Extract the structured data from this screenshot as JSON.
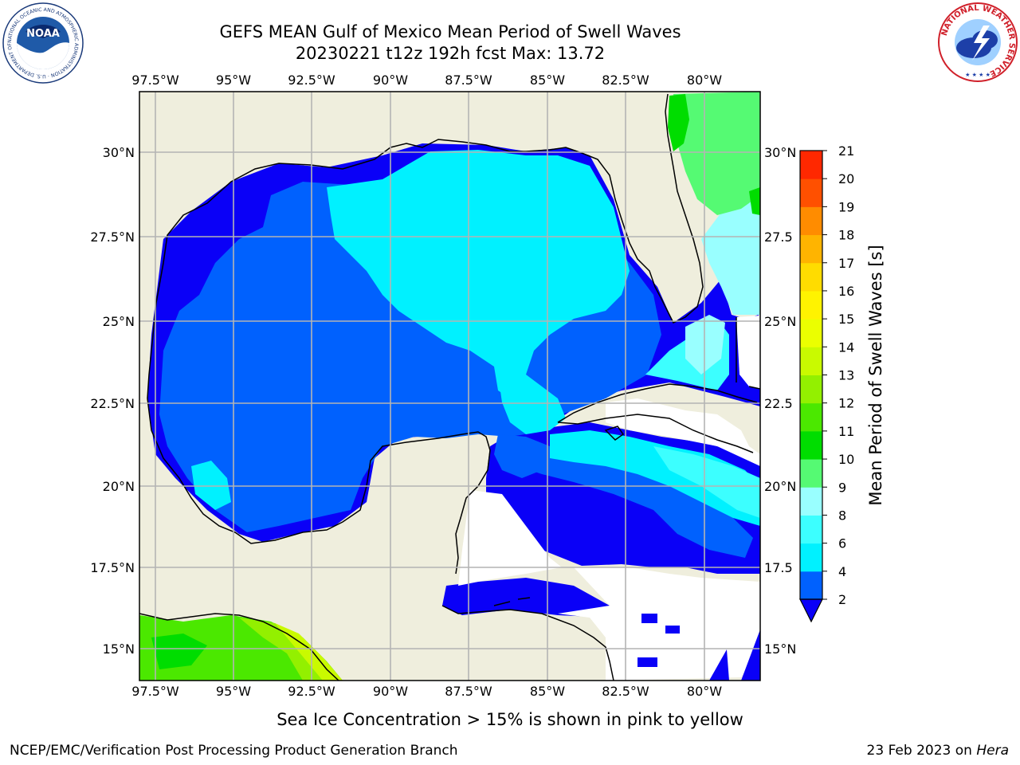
{
  "header": {
    "title_line1": "GEFS MEAN Gulf of Mexico Mean Period of Swell Waves",
    "title_line2": "20230221 t12z 192h fcst   Max: 13.72"
  },
  "logos": {
    "noaa": {
      "text": "NOAA",
      "ring_text": "NATIONAL OCEANIC AND ATMOSPHERIC ADMINISTRATION · U.S. DEPARTMENT OF COMMERCE ·",
      "icon": "noaa-logo-icon"
    },
    "nws": {
      "ring_text": "NATIONAL WEATHER SERVICE",
      "icon": "nws-logo-icon"
    }
  },
  "map": {
    "lon_labels": [
      "97.5°W",
      "95°W",
      "92.5°W",
      "90°W",
      "87.5°W",
      "85°W",
      "82.5°W",
      "80°W"
    ],
    "lat_labels_left": [
      "30°N",
      "27.5°N",
      "25°N",
      "22.5°N",
      "20°N",
      "17.5°N",
      "15°N"
    ],
    "lat_labels_right": [
      "30°N",
      "27.5",
      "25°N",
      "22.5",
      "20°N",
      "17.5",
      "15°N"
    ],
    "colors": {
      "land": "#efeedd",
      "grid": "#b4b4b4",
      "coast": "#000000",
      "nodata": "#ffffff"
    }
  },
  "colorbar": {
    "label": "Mean Period of Swell Waves [s]",
    "ticks": [
      "2",
      "4",
      "6",
      "8",
      "9",
      "10",
      "11",
      "12",
      "13",
      "14",
      "15",
      "16",
      "17",
      "18",
      "19",
      "20",
      "21"
    ],
    "colors": [
      "#0061fe",
      "#00f1ff",
      "#3cffff",
      "#99ffff",
      "#55fa73",
      "#00dd00",
      "#4be800",
      "#93f000",
      "#c9fa00",
      "#ebff00",
      "#fff300",
      "#ffdc00",
      "#ffb400",
      "#ff8c00",
      "#ff5000",
      "#ff2800",
      "#ff0000"
    ],
    "under_color": "#0a00f7"
  },
  "footer": {
    "ice_note": "Sea Ice Concentration > 15% is shown in pink to yellow",
    "credit": "NCEP/EMC/Verification Post Processing Product Generation Branch",
    "date_prefix": "23 Feb 2023 on ",
    "date_host": "Hera"
  }
}
